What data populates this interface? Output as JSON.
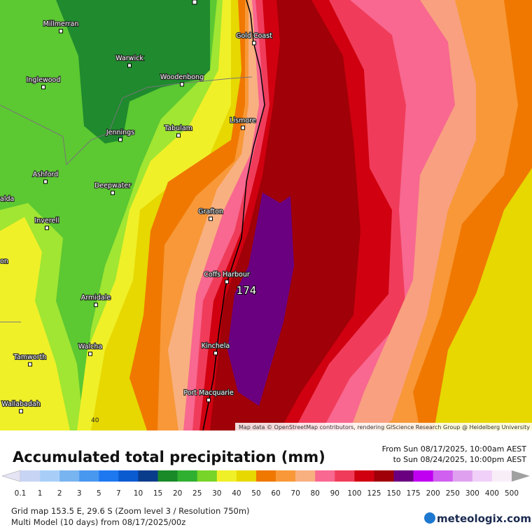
{
  "map": {
    "towns": [
      {
        "name": "Millmerran"
      },
      {
        "name": "Warwick"
      },
      {
        "name": "Inglewood"
      },
      {
        "name": "Woodenbong"
      },
      {
        "name": "Gold Coast"
      },
      {
        "name": "Jennings"
      },
      {
        "name": "Tabulam"
      },
      {
        "name": "Lismore"
      },
      {
        "name": "Ashford"
      },
      {
        "name": "Deepwater"
      },
      {
        "name": "Grafton"
      },
      {
        "name": "Inverell"
      },
      {
        "name": "Coffs Harbour"
      },
      {
        "name": "Armidale"
      },
      {
        "name": "Walcha"
      },
      {
        "name": "Kinchela"
      },
      {
        "name": "Tamworth"
      },
      {
        "name": "Port Macquarie"
      },
      {
        "name": "Wallabadah"
      }
    ],
    "edge_labels": [
      "alda",
      "on"
    ],
    "peak_label": "174",
    "contour_label": "40",
    "attribution": "Map data © OpenStreetMap contributors, rendering GIScience Research Group @ Heidelberg University"
  },
  "title": "Accumulated total precipitation (mm)",
  "period": {
    "from": "From Sun 08/17/2025, 10:00am AEST",
    "to": "to Sun 08/24/2025, 10:00pm AEST"
  },
  "legend": {
    "labels": [
      0.1,
      1,
      2,
      3,
      5,
      7,
      10,
      15,
      20,
      25,
      30,
      40,
      50,
      60,
      70,
      80,
      90,
      100,
      125,
      150,
      175,
      200,
      250,
      300,
      400,
      500
    ],
    "colors": [
      "#e4e4f4",
      "#c8d4f4",
      "#a8cef8",
      "#78b4f0",
      "#4898f0",
      "#1e78f0",
      "#0a5ad0",
      "#0a3c8c",
      "#1a8a28",
      "#30b030",
      "#78d428",
      "#f0f028",
      "#e6d800",
      "#f07800",
      "#f89838",
      "#f8b080",
      "#f86890",
      "#f03c5a",
      "#d00010",
      "#a00008",
      "#6a0080",
      "#c000f0",
      "#d060f0",
      "#e0a0f0",
      "#f0d0f8",
      "#f8eef8",
      "#d0d0d0",
      "#a0a0a0"
    ]
  },
  "info": [
    "Grid map 153.5 E, 29.6 S (Zoom level 3 / Resolution 750m)",
    "Multi Model (10 days) from 08/17/2025/00z"
  ],
  "brand": "meteologix.com"
}
